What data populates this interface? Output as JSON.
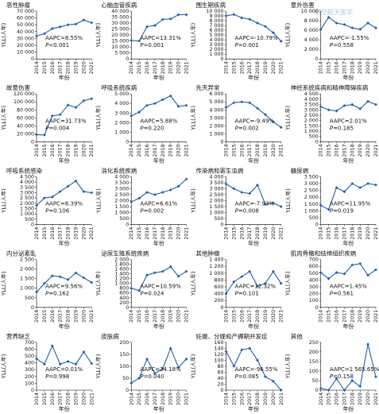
{
  "watermark": "航空航天医学",
  "chart_data": [
    {
      "type": "line",
      "title": "恶性肿瘤",
      "ylabel": "YLL(人年)",
      "xlabel": "年份",
      "ylim": [
        0,
        70000
      ],
      "yticks": [
        "0",
        "10 000",
        "20 000",
        "30 000",
        "40 000",
        "50 000",
        "60 000",
        "70 000"
      ],
      "categories": [
        "2014",
        "2015",
        "2016",
        "2017",
        "2018",
        "2019",
        "2020",
        "2021"
      ],
      "values": [
        33500,
        37000,
        44500,
        47000,
        50000,
        51000,
        57000,
        53000
      ],
      "aapc": "AAPC=8.55%",
      "p": "P<0.001"
    },
    {
      "type": "line",
      "title": "心脑血管疾病",
      "ylabel": "YLL(人年)",
      "xlabel": "年份",
      "ylim": [
        0,
        40000
      ],
      "yticks": [
        "0",
        "5 000",
        "10 000",
        "15 000",
        "20 000",
        "25 000",
        "30 000",
        "35 000",
        "40 000"
      ],
      "categories": [
        "2014",
        "2015",
        "2016",
        "2017",
        "2018",
        "2019",
        "2020",
        "2021"
      ],
      "values": [
        15500,
        15000,
        27000,
        28000,
        33000,
        33500,
        37000,
        37000
      ],
      "aapc": "AAPC=13.31%",
      "p": "P=0.001"
    },
    {
      "type": "line",
      "title": "围生期疾病",
      "ylabel": "YLL(人年)",
      "xlabel": "年份",
      "ylim": [
        0,
        10000
      ],
      "yticks": [
        "0",
        "1 000",
        "2 000",
        "3 000",
        "4 000",
        "5 000",
        "6 000",
        "7 000",
        "8 000",
        "9 000",
        "10 000"
      ],
      "categories": [
        "2014",
        "2015",
        "2016",
        "2017",
        "2018",
        "2019",
        "2020",
        "2021"
      ],
      "values": [
        9000,
        9300,
        8600,
        8300,
        7500,
        6800,
        5500,
        3700
      ],
      "aapc": "AAPC=-10.79%",
      "p": "P=0.001"
    },
    {
      "type": "line",
      "title": "意外伤害",
      "ylabel": "YLL(人年)",
      "xlabel": "年份",
      "ylim": [
        0,
        10000
      ],
      "yticks": [
        "0",
        "2 000",
        "4 000",
        "6 000",
        "8 000",
        "10 000"
      ],
      "categories": [
        "2014",
        "2015",
        "2016",
        "2017",
        "2018",
        "2019",
        "2020",
        "2021"
      ],
      "values": [
        6200,
        8700,
        7500,
        7200,
        6500,
        6200,
        7500,
        6500
      ],
      "aapc": "AAPC=-1.55%",
      "p": "P=0.558"
    },
    {
      "type": "line",
      "title": "故意伤害",
      "ylabel": "YLL(人年)",
      "xlabel": "年份",
      "ylim": [
        0,
        120000
      ],
      "yticks": [
        "0",
        "20 000",
        "40 000",
        "60 000",
        "80 000",
        "100 000",
        "120 000"
      ],
      "categories": [
        "2014",
        "2015",
        "2016",
        "2017",
        "2018",
        "2019",
        "2020",
        "2021"
      ],
      "values": [
        18000,
        17000,
        65000,
        68000,
        92000,
        86000,
        103000,
        108000
      ],
      "aapc": "AAPC=31.73%",
      "p": "P=0.004"
    },
    {
      "type": "line",
      "title": "呼吸系统疾病",
      "ylabel": "YLL(人年)",
      "xlabel": "年份",
      "ylim": [
        0,
        5000
      ],
      "yticks": [
        "0",
        "1 000",
        "2 000",
        "3 000",
        "4 000",
        "5 000"
      ],
      "categories": [
        "2014",
        "2015",
        "2016",
        "2017",
        "2018",
        "2019",
        "2020",
        "2021"
      ],
      "values": [
        2700,
        3100,
        3800,
        4000,
        4400,
        4800,
        3700,
        3800
      ],
      "aapc": "AAPC=5.88%",
      "p": "P=0.220"
    },
    {
      "type": "line",
      "title": "先天异常",
      "ylabel": "YLL(人年)",
      "xlabel": "年份",
      "ylim": [
        0,
        6000
      ],
      "yticks": [
        "0",
        "1 000",
        "2 000",
        "3 000",
        "4 000",
        "5 000",
        "6 000"
      ],
      "categories": [
        "2014",
        "2015",
        "2016",
        "2017",
        "2018",
        "2019",
        "2020",
        "2021"
      ],
      "values": [
        4300,
        4900,
        5000,
        4900,
        4200,
        3400,
        2500,
        1800
      ],
      "aapc": "AAPC=-9.49%",
      "p": "P=0.002"
    },
    {
      "type": "line",
      "title": "神经系统疾病和精神障碍疾病",
      "ylabel": "YLL(人年)",
      "xlabel": "年份",
      "ylim": [
        0,
        4500
      ],
      "yticks": [
        "0",
        "500",
        "1 000",
        "1 500",
        "2 000",
        "2 500",
        "3 000",
        "3 500",
        "4 000",
        "4 500"
      ],
      "categories": [
        "2014",
        "2015",
        "2016",
        "2017",
        "2018",
        "2019",
        "2020",
        "2021"
      ],
      "values": [
        3300,
        3000,
        2900,
        3400,
        3500,
        3100,
        3800,
        3500
      ],
      "aapc": "AAPC=2.01%",
      "p": "P=0.185"
    },
    {
      "type": "line",
      "title": "呼吸系统感染",
      "ylabel": "YLL(人年)",
      "xlabel": "年份",
      "ylim": [
        0,
        4500
      ],
      "yticks": [
        "0",
        "500",
        "1 000",
        "1 500",
        "2 000",
        "2 500",
        "3 000",
        "3 500",
        "4 000",
        "4 500"
      ],
      "categories": [
        "2014",
        "2015",
        "2016",
        "2017",
        "2018",
        "2019",
        "2020",
        "2021"
      ],
      "values": [
        1800,
        2500,
        2600,
        3100,
        3600,
        4100,
        3100,
        3000
      ],
      "aapc": "AAPC=6.39%",
      "p": "P=0.106"
    },
    {
      "type": "line",
      "title": "消化系统疾病",
      "ylabel": "YLL(人年)",
      "xlabel": "年份",
      "ylim": [
        0,
        4000
      ],
      "yticks": [
        "0",
        "500",
        "1 000",
        "1 500",
        "2 000",
        "2 500",
        "3 000",
        "3 500",
        "4 000"
      ],
      "categories": [
        "2014",
        "2015",
        "2016",
        "2017",
        "2018",
        "2019",
        "2020",
        "2021"
      ],
      "values": [
        1900,
        2200,
        2700,
        2500,
        2700,
        2900,
        3200,
        3800
      ],
      "aapc": "AAPC=6.61%",
      "p": "P=0.002"
    },
    {
      "type": "line",
      "title": "传染病和寄生虫病",
      "ylabel": "YLL(人年)",
      "xlabel": "年份",
      "ylim": [
        0,
        4000
      ],
      "yticks": [
        "0",
        "500",
        "1 000",
        "1 500",
        "2 000",
        "2 500",
        "3 000",
        "3 500",
        "4 000"
      ],
      "categories": [
        "2014",
        "2015",
        "2016",
        "2017",
        "2018",
        "2019",
        "2020",
        "2021"
      ],
      "values": [
        3400,
        3000,
        2700,
        2600,
        3300,
        1700,
        1800,
        1500
      ],
      "aapc": "AAPC=-7.93%",
      "p": "P=0.008"
    },
    {
      "type": "line",
      "title": "糖尿病",
      "ylabel": "YLL(人年)",
      "xlabel": "年份",
      "ylim": [
        0,
        3500
      ],
      "yticks": [
        "0",
        "500",
        "1 000",
        "1 500",
        "2 000",
        "2 500",
        "3 000",
        "3 500"
      ],
      "categories": [
        "2014",
        "2015",
        "2016",
        "2017",
        "2018",
        "2019",
        "2020",
        "2021"
      ],
      "values": [
        1400,
        1100,
        2700,
        2400,
        3000,
        2700,
        3000,
        2900
      ],
      "aapc": "AAPC=11.95%",
      "p": "P=0.019"
    },
    {
      "type": "line",
      "title": "内分泌紊乱",
      "ylabel": "YLL(人年)",
      "xlabel": "年份",
      "ylim": [
        0,
        2500
      ],
      "yticks": [
        "0",
        "500",
        "1 000",
        "1 500",
        "2 000",
        "2 500"
      ],
      "categories": [
        "2014",
        "2015",
        "2016",
        "2017",
        "2018",
        "2019",
        "2020",
        "2021"
      ],
      "values": [
        800,
        1250,
        1650,
        1600,
        1450,
        1800,
        1550,
        1300
      ],
      "aapc": "AAPC=9.56%",
      "p": "P=0.162"
    },
    {
      "type": "line",
      "title": "泌尿生殖系统疾病",
      "ylabel": "YLL(人年)",
      "xlabel": "年份",
      "ylim": [
        0,
        2000
      ],
      "yticks": [
        "0",
        "200",
        "400",
        "600",
        "800",
        "1 000",
        "1 200",
        "1 400",
        "1 600",
        "1 800",
        "2 000"
      ],
      "categories": [
        "2014",
        "2015",
        "2016",
        "2017",
        "2018",
        "2019",
        "2020",
        "2021"
      ],
      "values": [
        800,
        700,
        1350,
        1450,
        1500,
        1700,
        1300,
        1500
      ],
      "aapc": "AAPC=10.59%",
      "p": "P=0.024"
    },
    {
      "type": "line",
      "title": "其他肿瘤",
      "ylabel": "YLL(人年)",
      "xlabel": "年份",
      "ylim": [
        0,
        1400
      ],
      "yticks": [
        "0",
        "200",
        "400",
        "600",
        "800",
        "1 000",
        "1 200",
        "1 400"
      ],
      "categories": [
        "2014",
        "2015",
        "2016",
        "2017",
        "2018",
        "2019",
        "2020",
        "2021"
      ],
      "values": [
        400,
        750,
        900,
        1050,
        620,
        700,
        1050,
        700
      ],
      "aapc": "AAPC=12.32%",
      "p": "P=0.101"
    },
    {
      "type": "line",
      "title": "肌肉骨骼和结缔组织疾病",
      "ylabel": "YLL(人年)",
      "xlabel": "年份",
      "ylim": [
        0,
        700
      ],
      "yticks": [
        "0",
        "100",
        "200",
        "300",
        "400",
        "500",
        "600",
        "700"
      ],
      "categories": [
        "2014",
        "2015",
        "2016",
        "2017",
        "2018",
        "2019",
        "2020",
        "2021"
      ],
      "values": [
        510,
        420,
        510,
        490,
        620,
        640,
        470,
        550
      ],
      "aapc": "AAPC=1.45%",
      "p": "P=0.561"
    },
    {
      "type": "line",
      "title": "营养缺乏",
      "ylabel": "YLL(人年)",
      "xlabel": "年份",
      "ylim": [
        0,
        700
      ],
      "yticks": [
        "0",
        "100",
        "200",
        "300",
        "400",
        "500",
        "600",
        "700"
      ],
      "categories": [
        "2014",
        "2015",
        "2016",
        "2017",
        "2018",
        "2019",
        "2020",
        "2021"
      ],
      "values": [
        460,
        380,
        650,
        380,
        420,
        380,
        560,
        390
      ],
      "aapc": "AAPC=0.01%",
      "p": "P=0.998"
    },
    {
      "type": "line",
      "title": "皮肤病",
      "ylabel": "YLL(人年)",
      "xlabel": "年份",
      "ylim": [
        0,
        200
      ],
      "yticks": [
        "0",
        "50",
        "100",
        "150",
        "200"
      ],
      "categories": [
        "2014",
        "2015",
        "2016",
        "2017",
        "2018",
        "2019",
        "2020",
        "2021"
      ],
      "values": [
        30,
        50,
        130,
        70,
        90,
        175,
        95,
        130
      ],
      "aapc": "AAPC=24.18%",
      "p": "P=0.040"
    },
    {
      "type": "line",
      "title": "妊娠、分娩和产褥期并发症",
      "ylabel": "YLL(人年)",
      "xlabel": "年份",
      "ylim": [
        0,
        160
      ],
      "yticks": [
        "0",
        "20",
        "40",
        "60",
        "80",
        "100",
        "120",
        "140",
        "160"
      ],
      "categories": [
        "2014",
        "2015",
        "2016",
        "2017",
        "2018",
        "2019",
        "2020",
        "2021"
      ],
      "values": [
        130,
        80,
        135,
        140,
        100,
        45,
        30,
        0
      ],
      "aapc": "AAPC=-96.55%",
      "p": "P=0.085"
    },
    {
      "type": "line",
      "title": "其他",
      "ylabel": "YLL(人年)",
      "xlabel": "年份",
      "ylim": [
        0,
        250
      ],
      "yticks": [
        "0",
        "50",
        "100",
        "150",
        "200",
        "250"
      ],
      "categories": [
        "2014",
        "2015",
        "2016",
        "2017",
        "2018",
        "2019",
        "2020",
        "2021"
      ],
      "values": [
        10,
        0,
        60,
        0,
        50,
        20,
        240,
        70
      ],
      "aapc": "AAPC=1 565.65%",
      "p": "P=0.158"
    }
  ]
}
